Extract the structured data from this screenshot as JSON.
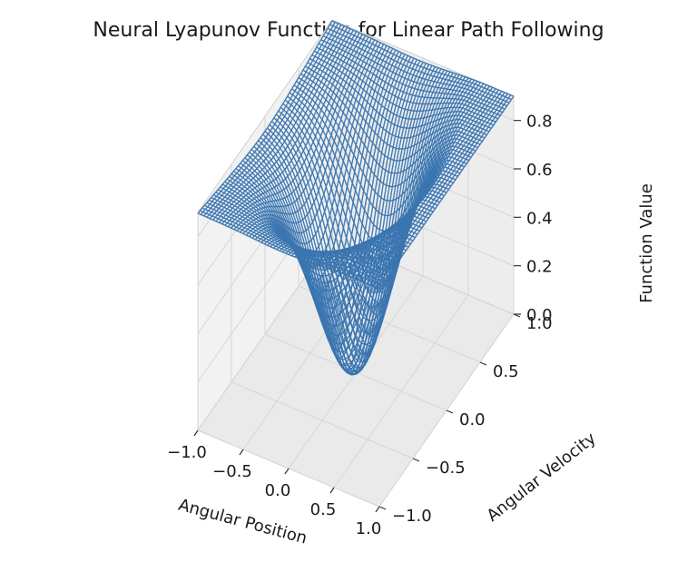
{
  "chart_data": {
    "type": "surface",
    "title": "Neural Lyapunov Function for Linear Path Following",
    "xlabel": "Angular Position",
    "ylabel": "Angular Velocity",
    "zlabel": "Function Value",
    "xlim": [
      -1.0,
      1.0
    ],
    "ylim": [
      -1.0,
      1.0
    ],
    "zlim": [
      0.0,
      0.9
    ],
    "xticks": [
      "−1.0",
      "−0.5",
      "0.0",
      "0.5",
      "1.0"
    ],
    "yticks": [
      "−1.0",
      "−0.5",
      "0.0",
      "0.5",
      "1.0"
    ],
    "zticks": [
      "0.0",
      "0.2",
      "0.4",
      "0.6",
      "0.8"
    ],
    "grid": true,
    "surface_color": "#3a75b0",
    "corner_values": [
      {
        "x": -1.0,
        "y": -1.0,
        "z": 0.88
      },
      {
        "x": 1.0,
        "y": -1.0,
        "z": 0.9
      },
      {
        "x": -1.0,
        "y": 1.0,
        "z": 0.9
      },
      {
        "x": 1.0,
        "y": 1.0,
        "z": 0.88
      }
    ],
    "minimum": {
      "x": 0.0,
      "y": 0.0,
      "z": 0.0
    }
  }
}
